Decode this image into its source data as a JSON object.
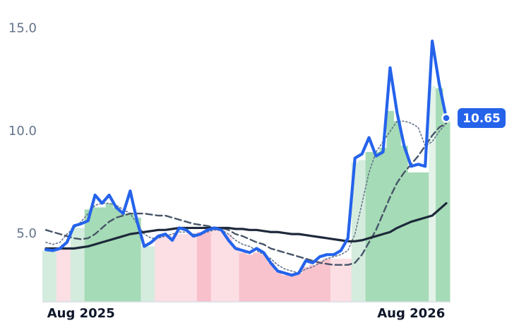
{
  "chart_data": {
    "type": "line",
    "categories": [
      null,
      null,
      null,
      null,
      null,
      "Aug 2025",
      null,
      null,
      null,
      null,
      null,
      null,
      null,
      null,
      null,
      null,
      null,
      null,
      null,
      null,
      null,
      null,
      null,
      null,
      null,
      null,
      null,
      null,
      null,
      null,
      null,
      null,
      null,
      null,
      null,
      null,
      null,
      null,
      null,
      null,
      null,
      null,
      null,
      null,
      null,
      null,
      null,
      null,
      null,
      null,
      null,
      null,
      "Aug 2026",
      null,
      null,
      null,
      null,
      null
    ],
    "ylim": [
      1.7,
      16.4
    ],
    "yticks": [
      {
        "value": 5,
        "label": "5.0"
      },
      {
        "value": 10,
        "label": "10.0"
      },
      {
        "value": 15,
        "label": "15.0"
      }
    ],
    "grid": false,
    "bars": {
      "values": [
        4.2,
        4.2,
        4.3,
        4.3,
        5.3,
        5.3,
        6.2,
        6.3,
        6.3,
        6.5,
        6.3,
        6.0,
        6.0,
        5.8,
        4.4,
        4.4,
        4.9,
        5.0,
        4.9,
        5.0,
        5.0,
        5.0,
        5.1,
        5.1,
        5.2,
        5.2,
        5.0,
        4.4,
        4.1,
        4.0,
        4.1,
        4.0,
        3.6,
        3.2,
        3.0,
        3.0,
        3.1,
        3.4,
        3.5,
        3.7,
        3.8,
        3.8,
        3.8,
        3.8,
        8.5,
        8.6,
        9.0,
        9.0,
        9.2,
        11.0,
        10.5,
        9.3,
        8.0,
        8.0,
        8.0,
        12.2,
        12.1,
        10.5
      ],
      "colors": [
        "#d4ecdd",
        "#d4ecdd",
        "#fcdfe5",
        "#fcdfe5",
        "#d4ecdd",
        "#d4ecdd",
        "#a5dbb6",
        "#a5dbb6",
        "#a5dbb6",
        "#a5dbb6",
        "#a5dbb6",
        "#a5dbb6",
        "#a5dbb6",
        "#a5dbb6",
        "#d4ecdd",
        "#d4ecdd",
        "#fcdfe5",
        "#fcdfe5",
        "#fcdfe5",
        "#fcdfe5",
        "#fcdfe5",
        "#fcdfe5",
        "#f8c0cb",
        "#f8c0cb",
        "#fcdfe5",
        "#fcdfe5",
        "#fcdfe5",
        "#fcdfe5",
        "#f8c3cd",
        "#f8c3cd",
        "#f8c3cd",
        "#f8c3cd",
        "#f8c3cd",
        "#f8c3cd",
        "#f8c3cd",
        "#f8c3cd",
        "#f8c3cd",
        "#f8c3cd",
        "#f8c3cd",
        "#f8c3cd",
        "#f8c3cd",
        "#fcdfe5",
        "#fcdfe5",
        "#fcdfe5",
        "#d4ecdd",
        "#d4ecdd",
        "#a5dbb6",
        "#a5dbb6",
        "#a5dbb6",
        "#a5dbb6",
        "#a5dbb6",
        "#a5dbb6",
        "#a5dbb6",
        "#a5dbb6",
        "#a5dbb6",
        "#e3f3e9",
        "#a5dbb6",
        "#a5dbb6"
      ]
    },
    "series": [
      {
        "color": "#64748b",
        "style": "dotted",
        "values": [
          4.6,
          4.5,
          4.6,
          5.0,
          5.3,
          5.6,
          6.0,
          6.4,
          6.5,
          6.5,
          6.4,
          6.2,
          6.0,
          5.5,
          5.0,
          4.8,
          4.8,
          4.9,
          5.0,
          5.1,
          5.1,
          5.0,
          5.0,
          5.1,
          5.2,
          5.2,
          5.0,
          4.7,
          4.5,
          4.4,
          4.2,
          4.0,
          3.8,
          3.5,
          3.3,
          3.2,
          3.1,
          3.3,
          3.4,
          3.6,
          3.8,
          3.9,
          4.0,
          4.2,
          5.0,
          6.5,
          8.0,
          9.0,
          9.5,
          10.0,
          10.5,
          10.5,
          10.4,
          10.2,
          9.3,
          9.5,
          10.0,
          10.4
        ]
      },
      {
        "color": "#475569",
        "style": "dashed",
        "values": [
          5.2,
          5.1,
          5.0,
          4.9,
          4.8,
          4.75,
          4.8,
          5.0,
          5.3,
          5.6,
          5.8,
          5.9,
          6.0,
          6.0,
          6.0,
          5.95,
          5.9,
          5.9,
          5.8,
          5.7,
          5.6,
          5.5,
          5.45,
          5.4,
          5.3,
          5.3,
          5.2,
          5.0,
          4.9,
          4.75,
          4.6,
          4.5,
          4.3,
          4.2,
          4.1,
          4.0,
          3.9,
          3.8,
          3.7,
          3.6,
          3.55,
          3.5,
          3.5,
          3.5,
          3.6,
          4.0,
          4.6,
          5.2,
          6.0,
          6.8,
          7.5,
          8.0,
          8.4,
          8.8,
          9.3,
          9.8,
          10.2,
          10.4
        ]
      },
      {
        "color": "#1e293b",
        "style": "solid",
        "values": [
          4.3,
          4.3,
          4.3,
          4.3,
          4.3,
          4.35,
          4.4,
          4.5,
          4.6,
          4.7,
          4.8,
          4.9,
          5.0,
          5.05,
          5.1,
          5.15,
          5.2,
          5.2,
          5.25,
          5.3,
          5.3,
          5.3,
          5.3,
          5.3,
          5.3,
          5.3,
          5.3,
          5.25,
          5.25,
          5.2,
          5.2,
          5.15,
          5.1,
          5.1,
          5.05,
          5.0,
          5.0,
          4.95,
          4.9,
          4.85,
          4.8,
          4.75,
          4.7,
          4.65,
          4.65,
          4.7,
          4.8,
          4.9,
          5.0,
          5.1,
          5.3,
          5.45,
          5.6,
          5.7,
          5.8,
          5.9,
          6.2,
          6.5
        ]
      },
      {
        "color": "#2563eb",
        "style": "bold",
        "values": [
          4.24,
          4.2,
          4.3,
          4.6,
          5.4,
          5.5,
          5.65,
          6.9,
          6.5,
          6.9,
          6.3,
          6.0,
          7.1,
          5.6,
          4.4,
          4.6,
          4.9,
          5.0,
          4.7,
          5.3,
          5.2,
          4.9,
          5.0,
          5.2,
          5.3,
          5.2,
          4.7,
          4.3,
          4.2,
          4.1,
          4.3,
          4.1,
          3.6,
          3.2,
          3.1,
          3.0,
          3.1,
          3.7,
          3.6,
          3.9,
          4.0,
          4.0,
          4.2,
          4.8,
          8.7,
          8.9,
          9.7,
          8.8,
          9.0,
          13.1,
          10.9,
          9.3,
          8.3,
          8.4,
          8.3,
          14.4,
          12.3,
          10.65
        ]
      }
    ]
  }
}
